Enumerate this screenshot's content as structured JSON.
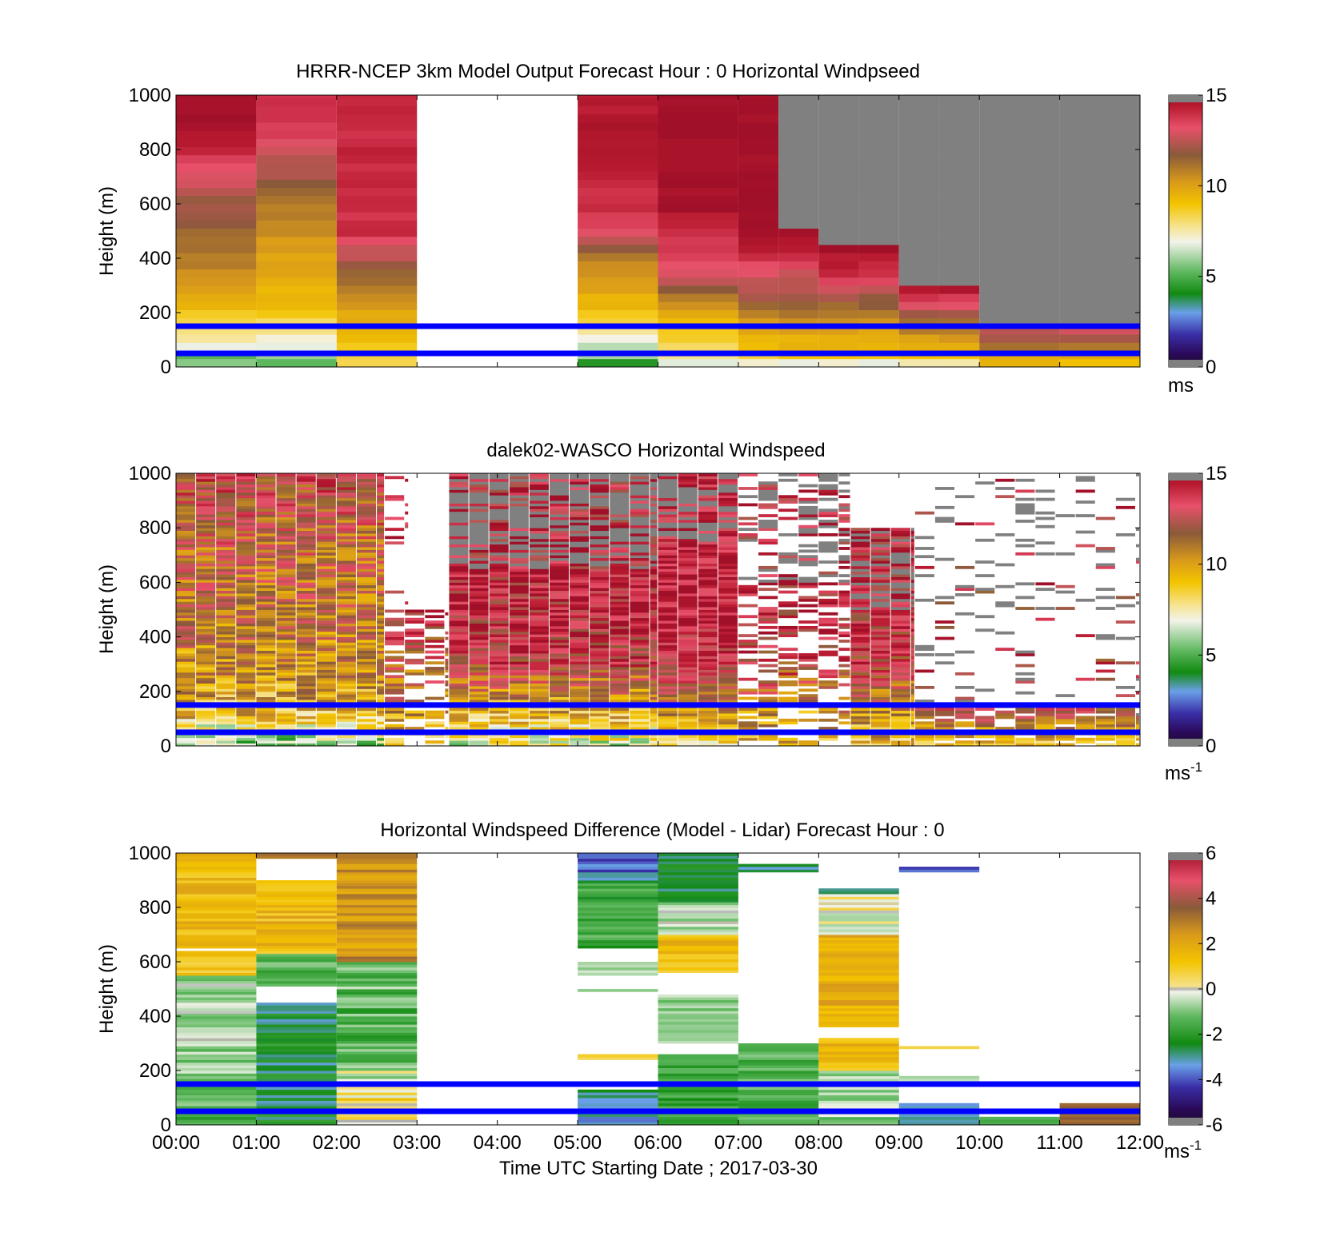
{
  "figure": {
    "xlabel": "Time UTC  Starting Date ; 2017-03-30",
    "time_ticks": [
      "00:00",
      "01:00",
      "02:00",
      "03:00",
      "04:00",
      "05:00",
      "06:00",
      "07:00",
      "08:00",
      "09:00",
      "10:00",
      "11:00",
      "12:00"
    ],
    "height_ticks": [
      "0",
      "200",
      "400",
      "600",
      "800",
      "1000"
    ],
    "ylabel": "Height (m)",
    "reference_lines_m": [
      150,
      50
    ],
    "reference_line_color": "#0000ff",
    "missing_color": "#808080"
  },
  "chart_data": [
    {
      "type": "heatmap",
      "title": "HRRR-NCEP 3km Model Output   Forecast Hour : 0 Horizontal Windpseed",
      "xlabel": "",
      "ylabel": "Height (m)",
      "xlim_hours": [
        0,
        12
      ],
      "ylim": [
        0,
        1000
      ],
      "colorbar": {
        "min": 0,
        "max": 15,
        "ticks": [
          "0",
          "5",
          "10",
          "15"
        ],
        "unit": "ms"
      },
      "columns": [
        {
          "t0": 0,
          "t1": 1,
          "profile": [
            [
              0,
              6
            ],
            [
              40,
              5
            ],
            [
              80,
              7
            ],
            [
              150,
              8
            ],
            [
              200,
              9
            ],
            [
              300,
              10
            ],
            [
              400,
              11
            ],
            [
              600,
              12
            ],
            [
              700,
              13
            ],
            [
              800,
              14
            ],
            [
              900,
              15
            ],
            [
              1000,
              15
            ]
          ]
        },
        {
          "t0": 1,
          "t1": 2,
          "profile": [
            [
              0,
              5
            ],
            [
              50,
              6
            ],
            [
              100,
              7
            ],
            [
              150,
              8
            ],
            [
              200,
              9
            ],
            [
              400,
              10
            ],
            [
              600,
              11
            ],
            [
              700,
              12
            ],
            [
              800,
              13
            ],
            [
              900,
              14
            ],
            [
              1000,
              14
            ]
          ]
        },
        {
          "t0": 2,
          "t1": 3,
          "profile": [
            [
              0,
              8
            ],
            [
              100,
              9
            ],
            [
              200,
              10
            ],
            [
              300,
              11
            ],
            [
              380,
              12
            ],
            [
              450,
              13
            ],
            [
              500,
              14
            ],
            [
              1000,
              14
            ]
          ]
        },
        {
          "t0": 3,
          "t1": 5,
          "missing": "blank"
        },
        {
          "t0": 5,
          "t1": 6,
          "profile": [
            [
              0,
              4
            ],
            [
              50,
              6
            ],
            [
              100,
              7
            ],
            [
              150,
              8
            ],
            [
              200,
              9
            ],
            [
              300,
              10
            ],
            [
              400,
              11
            ],
            [
              500,
              13
            ],
            [
              600,
              14
            ],
            [
              800,
              14.5
            ],
            [
              1000,
              14.5
            ]
          ]
        },
        {
          "t0": 6,
          "t1": 7,
          "profile": [
            [
              0,
              6
            ],
            [
              50,
              8
            ],
            [
              150,
              9
            ],
            [
              250,
              11
            ],
            [
              300,
              12
            ],
            [
              350,
              13
            ],
            [
              500,
              14
            ],
            [
              600,
              15
            ],
            [
              1000,
              15
            ]
          ]
        },
        {
          "t0": 7,
          "t1": 8,
          "profile": [
            [
              0,
              6
            ],
            [
              50,
              9
            ],
            [
              150,
              10
            ],
            [
              250,
              12
            ],
            [
              350,
              13
            ],
            [
              400,
              14
            ],
            [
              500,
              15
            ],
            [
              1000,
              15
            ]
          ],
          "top_m": [
            1000,
            500
          ],
          "above": "missing"
        },
        {
          "t0": 8,
          "t1": 9,
          "profile": [
            [
              0,
              6
            ],
            [
              50,
              9
            ],
            [
              150,
              10
            ],
            [
              250,
              12
            ],
            [
              300,
              13
            ],
            [
              350,
              14
            ],
            [
              450,
              15
            ]
          ],
          "top_m": [
            450,
            450
          ],
          "above": "missing"
        },
        {
          "t0": 9,
          "t1": 10,
          "profile": [
            [
              0,
              7
            ],
            [
              50,
              9
            ],
            [
              150,
              11
            ],
            [
              220,
              13
            ],
            [
              300,
              15
            ]
          ],
          "top_m": [
            300,
            300
          ],
          "above": "missing"
        },
        {
          "t0": 10,
          "t1": 12,
          "profile": [
            [
              0,
              9
            ],
            [
              50,
              10
            ],
            [
              100,
              12
            ],
            [
              150,
              13
            ]
          ],
          "top_m": [
            150,
            150
          ],
          "above": "missing"
        }
      ]
    },
    {
      "type": "heatmap",
      "title": "dalek02-WASCO  Horizontal Windspeed",
      "xlabel": "",
      "ylabel": "Height (m)",
      "xlim_hours": [
        0,
        12
      ],
      "ylim": [
        0,
        1000
      ],
      "colorbar": {
        "min": 0,
        "max": 15,
        "ticks": [
          "0",
          "5",
          "10",
          "15"
        ],
        "unit": "ms",
        "unit_exp": "-1"
      },
      "segments": [
        {
          "t0": 0,
          "t1": 2.6,
          "coverage": [
            0,
            1000
          ],
          "profile": [
            [
              0,
              6
            ],
            [
              50,
              7
            ],
            [
              100,
              9
            ],
            [
              200,
              10
            ],
            [
              400,
              11
            ],
            [
              600,
              11.5
            ],
            [
              800,
              12
            ],
            [
              1000,
              13
            ]
          ],
          "jitter": 2.0
        },
        {
          "t0": 2.6,
          "t1": 2.9,
          "coverage": [
            500,
            1000
          ],
          "sparse": 0.25,
          "profile": [
            [
              0,
              13
            ],
            [
              1000,
              14
            ]
          ],
          "jitter": 1.5
        },
        {
          "t0": 2.6,
          "t1": 3.4,
          "coverage": [
            0,
            500
          ],
          "sparse": 0.5,
          "profile": [
            [
              0,
              9
            ],
            [
              200,
              11
            ],
            [
              500,
              14
            ]
          ],
          "jitter": 2.0
        },
        {
          "t0": 3.4,
          "t1": 6.0,
          "coverage": [
            0,
            1000
          ],
          "profile": [
            [
              0,
              7
            ],
            [
              100,
              9
            ],
            [
              200,
              11
            ],
            [
              300,
              13
            ],
            [
              500,
              14
            ],
            [
              700,
              14
            ],
            [
              1000,
              14
            ]
          ],
          "jitter": 2.0,
          "missing_above_m": 650,
          "missing_prob": 0.55
        },
        {
          "t0": 6.0,
          "t1": 7.0,
          "coverage": [
            0,
            1000
          ],
          "profile": [
            [
              0,
              8
            ],
            [
              100,
              10
            ],
            [
              250,
              13
            ],
            [
              500,
              14.5
            ],
            [
              800,
              14
            ],
            [
              1000,
              14
            ]
          ],
          "jitter": 1.5,
          "missing_above_m": 750,
          "missing_prob": 0.45
        },
        {
          "t0": 7.0,
          "t1": 8.4,
          "coverage": [
            0,
            1000
          ],
          "sparse": 0.45,
          "profile": [
            [
              0,
              9
            ],
            [
              150,
              11
            ],
            [
              300,
              13
            ],
            [
              600,
              14
            ],
            [
              1000,
              14
            ]
          ],
          "jitter": 2.0,
          "missing_above_m": 600,
          "missing_prob": 0.5
        },
        {
          "t0": 8.4,
          "t1": 9.2,
          "coverage": [
            0,
            800
          ],
          "profile": [
            [
              0,
              9
            ],
            [
              150,
              11
            ],
            [
              300,
              13
            ],
            [
              600,
              14
            ],
            [
              800,
              14
            ]
          ],
          "jitter": 2.0,
          "missing_above_m": 500,
          "missing_prob": 0.4
        },
        {
          "t0": 9.2,
          "t1": 12,
          "coverage": [
            0,
            1000
          ],
          "sparse": 0.12,
          "profile": [
            [
              0,
              9
            ],
            [
              100,
              11
            ],
            [
              200,
              13
            ],
            [
              1000,
              14
            ]
          ],
          "jitter": 2.0,
          "missing_above_m": 0,
          "missing_prob": 0.65
        },
        {
          "t0": 9.2,
          "t1": 12,
          "coverage": [
            0,
            150
          ],
          "sparse": 0.8,
          "profile": [
            [
              0,
              9
            ],
            [
              50,
              10
            ],
            [
              100,
              12
            ],
            [
              150,
              13
            ]
          ],
          "jitter": 1.5
        }
      ]
    },
    {
      "type": "heatmap",
      "title": "Horizontal Windspeed Difference (Model - Lidar) Forecast Hour : 0",
      "xlabel": "Time UTC  Starting Date ; 2017-03-30",
      "ylabel": "Height (m)",
      "xlim_hours": [
        0,
        12
      ],
      "ylim": [
        0,
        1000
      ],
      "colorbar": {
        "min": -6,
        "max": 6,
        "ticks": [
          "-6",
          "-4",
          "-2",
          "0",
          "2",
          "4",
          "6"
        ],
        "unit": "ms",
        "unit_exp": "-1"
      },
      "columns": [
        {
          "t0": 0,
          "t1": 1,
          "bands": [
            [
              0,
              50,
              -1.5
            ],
            [
              50,
              150,
              -1
            ],
            [
              150,
              300,
              -0.8
            ],
            [
              300,
              550,
              -0.6
            ],
            [
              550,
              640,
              1
            ],
            [
              640,
              650,
              null
            ],
            [
              650,
              1000,
              1.5
            ]
          ],
          "jitter": 0.7
        },
        {
          "t0": 1,
          "t1": 2,
          "bands": [
            [
              0,
              450,
              -2.5
            ],
            [
              450,
              510,
              null
            ],
            [
              510,
              630,
              -1.2
            ],
            [
              630,
              900,
              1.5
            ],
            [
              900,
              980,
              null
            ],
            [
              980,
              1000,
              3
            ]
          ],
          "jitter": 0.8
        },
        {
          "t0": 2,
          "t1": 3,
          "bands": [
            [
              0,
              150,
              0.5
            ],
            [
              150,
              200,
              -0.3
            ],
            [
              200,
              600,
              -1.3
            ],
            [
              600,
              1000,
              2.5
            ]
          ],
          "jitter": 0.9
        },
        {
          "t0": 5,
          "t1": 6,
          "bands": [
            [
              0,
              130,
              -3
            ],
            [
              240,
              260,
              1.2
            ],
            [
              490,
              500,
              -0.5
            ],
            [
              550,
              600,
              -0.5
            ],
            [
              650,
              900,
              -1.8
            ],
            [
              900,
              1000,
              -3.8
            ]
          ],
          "jitter": 0.8
        },
        {
          "t0": 6,
          "t1": 7,
          "bands": [
            [
              0,
              260,
              -1.8
            ],
            [
              300,
              480,
              -0.7
            ],
            [
              560,
              620,
              1.2
            ],
            [
              620,
              700,
              1.5
            ],
            [
              700,
              820,
              -0.5
            ],
            [
              820,
              1000,
              -2.5
            ]
          ],
          "jitter": 0.6
        },
        {
          "t0": 7,
          "t1": 8,
          "bands": [
            [
              0,
              300,
              -1.5
            ],
            [
              930,
              960,
              -3
            ]
          ],
          "jitter": 0.6
        },
        {
          "t0": 8,
          "t1": 9,
          "bands": [
            [
              0,
              200,
              -0.8
            ],
            [
              200,
              320,
              1.5
            ],
            [
              360,
              700,
              1.8
            ],
            [
              700,
              850,
              0
            ],
            [
              850,
              870,
              -2.5
            ]
          ],
          "jitter": 0.7
        },
        {
          "t0": 9,
          "t1": 10,
          "bands": [
            [
              0,
              80,
              -3.2
            ],
            [
              160,
              180,
              -0.6
            ],
            [
              280,
              290,
              0.8
            ],
            [
              930,
              950,
              -4
            ]
          ],
          "jitter": 0.3
        },
        {
          "t0": 10,
          "t1": 11,
          "bands": [
            [
              0,
              30,
              -1.5
            ]
          ],
          "jitter": 0.3
        },
        {
          "t0": 11,
          "t1": 12,
          "bands": [
            [
              0,
              80,
              3.5
            ]
          ],
          "jitter": 0.3
        }
      ]
    }
  ],
  "panels_text": [
    {
      "title": "HRRR-NCEP 3km Model Output   Forecast Hour : 0 Horizontal Windpseed",
      "unit": "ms",
      "unit_exp": ""
    },
    {
      "title": "dalek02-WASCO  Horizontal Windspeed",
      "unit": "ms",
      "unit_exp": "-1"
    },
    {
      "title": "Horizontal Windspeed Difference (Model - Lidar) Forecast Hour : 0",
      "unit": "ms",
      "unit_exp": "-1"
    }
  ],
  "colorbar_ticks": [
    [
      "0",
      "5",
      "10",
      "15"
    ],
    [
      "0",
      "5",
      "10",
      "15"
    ],
    [
      "-6",
      "-4",
      "-2",
      "0",
      "2",
      "4",
      "6"
    ]
  ]
}
